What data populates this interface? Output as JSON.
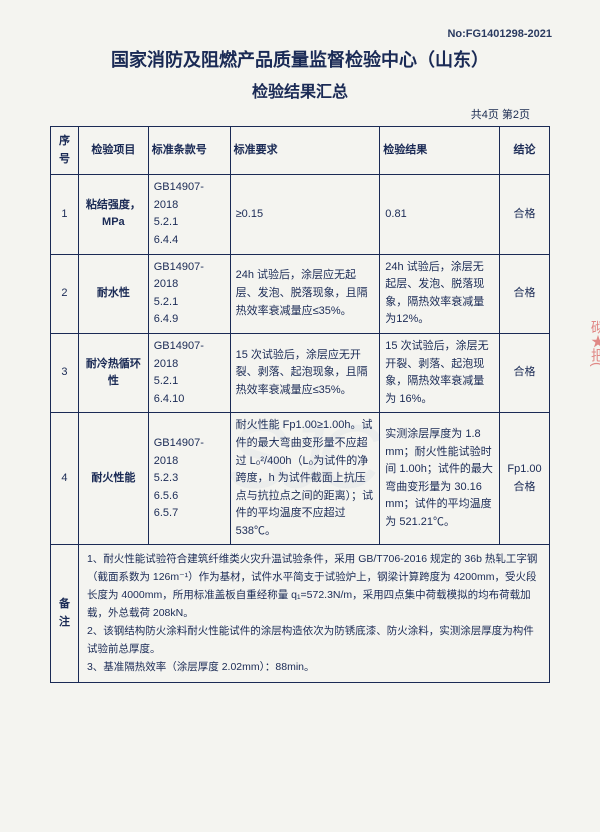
{
  "doc_no": "No:FG1401298-2021",
  "title": "国家消防及阻燃产品质量监督检验中心（山东）",
  "subtitle": "检验结果汇总",
  "page_info": "共4页 第2页",
  "headers": {
    "seq": "序号",
    "item": "检验项目",
    "std": "标准条款号",
    "req": "标准要求",
    "res": "检验结果",
    "con": "结论"
  },
  "rows": [
    {
      "seq": "1",
      "item": "粘结强度，MPa",
      "std": "GB14907-2018\n5.2.1\n6.4.4",
      "req": "≥0.15",
      "res": "0.81",
      "con": "合格"
    },
    {
      "seq": "2",
      "item": "耐水性",
      "std": "GB14907-2018\n5.2.1\n6.4.9",
      "req": "24h 试验后，涂层应无起层、发泡、脱落现象，且隔热效率衰减量应≤35%。",
      "res": "24h 试验后，涂层无起层、发泡、脱落现象，隔热效率衰减量为12%。",
      "con": "合格"
    },
    {
      "seq": "3",
      "item": "耐冷热循环性",
      "std": "GB14907-2018\n5.2.1\n6.4.10",
      "req": "15 次试验后，涂层应无开裂、剥落、起泡现象，且隔热效率衰减量应≤35%。",
      "res": "15 次试验后，涂层无开裂、剥落、起泡现象，隔热效率衰减量为 16%。",
      "con": "合格"
    },
    {
      "seq": "4",
      "item": "耐火性能",
      "std": "GB14907-2018\n5.2.3\n6.5.6\n6.5.7",
      "req": "耐火性能 Fp1.00≥1.00h。试件的最大弯曲变形量不应超过 L₀²/400h（L₀为试件的净跨度，h 为试件截面上抗压点与抗拉点之间的距离）；试件的平均温度不应超过 538℃。",
      "res": "实测涂层厚度为 1.8 mm；耐火性能试验时间 1.00h；试件的最大弯曲变形量为 30.16 mm；试件的平均温度为 521.21℃。",
      "con": "Fp1.00\n合格"
    }
  ],
  "remark_label": "备注",
  "remark_body": "1、耐火性能试验符合建筑纤维类火灾升温试验条件，采用 GB/T706-2016 规定的 36b 热轧工字钢（截面系数为 126m⁻¹）作为基材，试件水平简支于试验炉上，钢梁计算跨度为 4200mm，受火段长度为 4000mm，所用标准盖板自重经称量 q₁=572.3N/m，采用四点集中荷载模拟的均布荷载加载，外总载荷 208kN。\n2、该钢结构防火涂料耐火性能试件的涂层构造依次为防锈底漆、防火涂料，实测涂层厚度为构件试验前总厚度。\n3、基准隔热效率（涂层厚度 2.02mm）：88min。",
  "stamp_text": "砌★把(",
  "watermark": "SJC"
}
